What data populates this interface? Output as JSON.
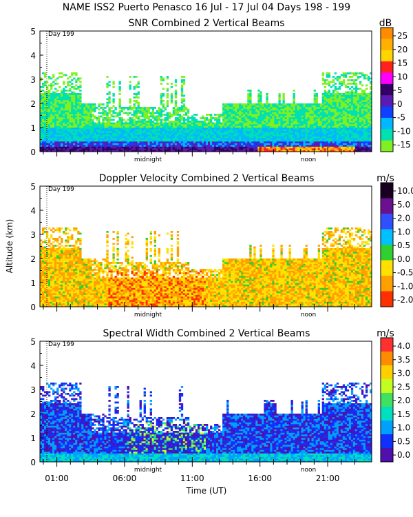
{
  "header": {
    "title": "NAME ISS2 Puerto Penasco  16 Jul - 17 Jul 04 Days 198 - 199"
  },
  "chart_data": [
    {
      "type": "heatmap",
      "title": "SNR Combined 2 Vertical Beams",
      "ylabel": "",
      "xlabel": "",
      "ylim": [
        0,
        5
      ],
      "yticks": [
        "0",
        "1",
        "2",
        "3",
        "4",
        "5"
      ],
      "day_marker": "Day 199",
      "time_annotations": [
        "midnight",
        "noon"
      ],
      "colorbar": {
        "unit": "dB",
        "labels": [
          "25",
          "20",
          "15",
          "10",
          "5",
          "0",
          "-5",
          "-10",
          "-15"
        ]
      }
    },
    {
      "type": "heatmap",
      "title": "Doppler Velocity Combined 2 Vertical Beams",
      "ylabel": "Altitude (km)",
      "xlabel": "",
      "ylim": [
        0,
        5
      ],
      "yticks": [
        "0",
        "1",
        "2",
        "3",
        "4",
        "5"
      ],
      "day_marker": "Day 199",
      "time_annotations": [
        "midnight",
        "noon"
      ],
      "colorbar": {
        "unit": "m/s",
        "labels": [
          "10.0",
          "5.0",
          "2.0",
          "1.0",
          "0.5",
          "0.0",
          "-0.5",
          "-1.0",
          "-2.0"
        ]
      }
    },
    {
      "type": "heatmap",
      "title": "Spectral Width Combined 2 Vertical Beams",
      "ylabel": "",
      "xlabel": "Time (UT)",
      "ylim": [
        0,
        5
      ],
      "yticks": [
        "0",
        "1",
        "2",
        "3",
        "4",
        "5"
      ],
      "xticks": [
        "01:00",
        "06:00",
        "11:00",
        "16:00",
        "21:00"
      ],
      "day_marker": "Day 199",
      "time_annotations": [
        "midnight",
        "noon"
      ],
      "colorbar": {
        "unit": "m/s",
        "labels": [
          "4.0",
          "3.5",
          "3.0",
          "2.5",
          "2.0",
          "1.5",
          "1.0",
          "0.5",
          "0.0"
        ]
      }
    }
  ],
  "colors": {
    "snr": [
      "#ff8c00",
      "#ffd500",
      "#ff2020",
      "#ff00ff",
      "#330066",
      "#5a1ab4",
      "#1040ff",
      "#00b8ff",
      "#00e0b0",
      "#80f020"
    ],
    "velocity": [
      "#1a0020",
      "#6a1090",
      "#2050ff",
      "#00c0ff",
      "#30d030",
      "#ffe000",
      "#ffa000",
      "#ff3000"
    ],
    "width": [
      "#ff3030",
      "#ff8c00",
      "#ffd000",
      "#c0ff20",
      "#40e060",
      "#00e0c0",
      "#00a0ff",
      "#1030ff",
      "#5010b0"
    ]
  }
}
